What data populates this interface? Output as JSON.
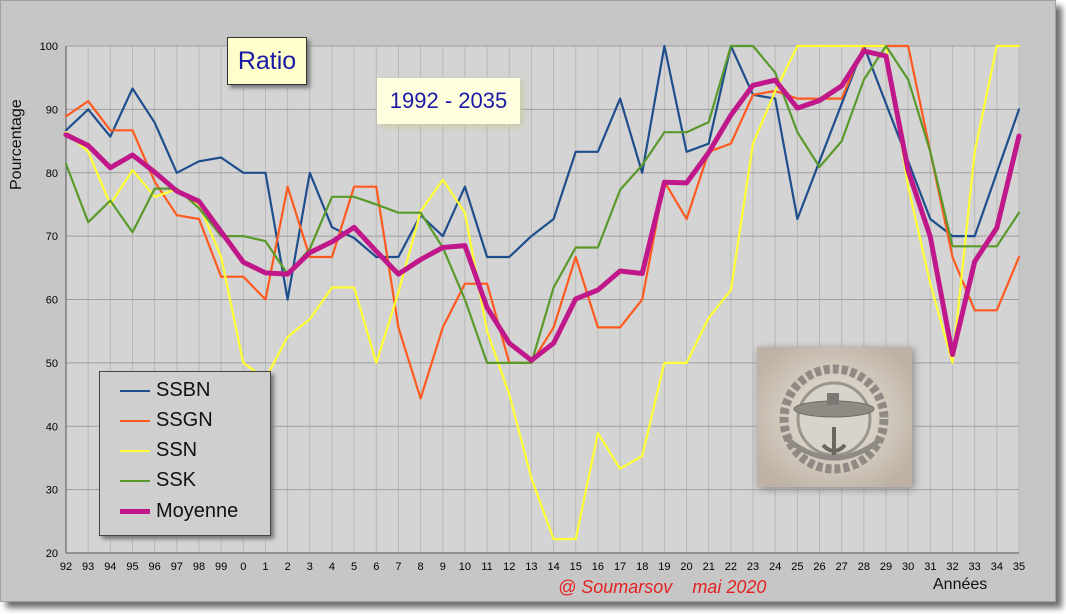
{
  "chart_data": {
    "type": "line",
    "title": "Ratio",
    "subtitle": "1992 - 2035",
    "xlabel": "Années",
    "ylabel": "Pourcentage",
    "ylim": [
      20,
      100
    ],
    "yticks": [
      "20",
      "30",
      "40",
      "50",
      "60",
      "70",
      "80",
      "90",
      "100"
    ],
    "grid": true,
    "legend_position": "bottom-left",
    "x": [
      "92",
      "93",
      "94",
      "95",
      "96",
      "97",
      "98",
      "99",
      "0",
      "1",
      "2",
      "3",
      "4",
      "5",
      "6",
      "7",
      "8",
      "9",
      "10",
      "11",
      "12",
      "13",
      "14",
      "15",
      "16",
      "17",
      "18",
      "19",
      "20",
      "21",
      "22",
      "23",
      "24",
      "25",
      "26",
      "27",
      "28",
      "29",
      "30",
      "31",
      "32",
      "33",
      "34",
      "35"
    ],
    "series": [
      {
        "name": "SSBN",
        "color": "#1f4e8c",
        "width": 2.2,
        "values": [
          86.7,
          90,
          85.7,
          93.3,
          87.9,
          80,
          81.8,
          82.4,
          80,
          80,
          60,
          80,
          71.4,
          69.7,
          66.7,
          66.7,
          73.3,
          70,
          77.8,
          66.7,
          66.7,
          70,
          72.7,
          83.3,
          83.3,
          91.7,
          80,
          100,
          83.3,
          84.6,
          100,
          92.3,
          91.7,
          72.7,
          81.8,
          90.9,
          100,
          90.9,
          81.8,
          72.7,
          70,
          70,
          80,
          90
        ]
      },
      {
        "name": "SSGN",
        "color": "#ff5a1f",
        "width": 2.2,
        "values": [
          88.9,
          91.3,
          86.7,
          86.7,
          78.6,
          73.3,
          72.7,
          63.6,
          63.6,
          60,
          77.8,
          66.7,
          66.7,
          77.8,
          77.8,
          55.6,
          44.4,
          55.6,
          62.5,
          62.5,
          50,
          50,
          55.6,
          66.7,
          55.6,
          55.6,
          60,
          78.6,
          72.7,
          83.3,
          84.6,
          92.3,
          92.9,
          91.7,
          91.7,
          91.7,
          100,
          100,
          100,
          83.3,
          66.7,
          58.3,
          58.3,
          66.7
        ]
      },
      {
        "name": "SSN",
        "color": "#ffff33",
        "width": 2.2,
        "values": [
          86.4,
          83.3,
          75,
          80.4,
          76.2,
          77.4,
          75,
          66.7,
          50,
          47.5,
          54.1,
          56.9,
          61.9,
          61.9,
          50,
          61.1,
          73.9,
          78.9,
          73.7,
          55,
          45,
          31.8,
          22.2,
          22.2,
          38.9,
          33.3,
          35.3,
          50,
          50,
          57.1,
          61.5,
          84.6,
          92.9,
          100,
          100,
          100,
          100,
          100,
          77.8,
          62.5,
          50,
          83.3,
          100,
          100
        ]
      },
      {
        "name": "SSK",
        "color": "#5a9a2c",
        "width": 2.2,
        "values": [
          81.4,
          72.2,
          75.6,
          70.6,
          77.5,
          77.5,
          74.4,
          70,
          70,
          69.2,
          64,
          68,
          76.2,
          76.2,
          75,
          73.7,
          73.7,
          68.2,
          60,
          50,
          50,
          50,
          61.9,
          68.2,
          68.2,
          77.3,
          81.2,
          86.4,
          86.4,
          88,
          100,
          100,
          95.8,
          86.4,
          80.9,
          85,
          94.7,
          100,
          94.7,
          83.3,
          68.4,
          68.4,
          68.4,
          73.7
        ]
      },
      {
        "name": "Moyenne",
        "color": "#c0188a",
        "width": 5,
        "values": [
          86,
          84.3,
          80.8,
          82.8,
          80.1,
          77.1,
          75.5,
          70.7,
          65.9,
          64.2,
          64,
          67.4,
          69.1,
          71.4,
          67.6,
          64,
          66.3,
          68.2,
          68.5,
          58.7,
          53.1,
          50.4,
          53.1,
          60.1,
          61.5,
          64.5,
          64.1,
          78.5,
          78.4,
          83.2,
          89.1,
          93.8,
          94.6,
          90.2,
          91.4,
          93.7,
          99.2,
          98.4,
          80.3,
          69.9,
          51.3,
          66,
          71.3,
          85.8
        ]
      }
    ]
  },
  "credit": "@ Soumarsov    mai 2020",
  "badge": {
    "description_icon": "submarine-insignia-icon"
  }
}
